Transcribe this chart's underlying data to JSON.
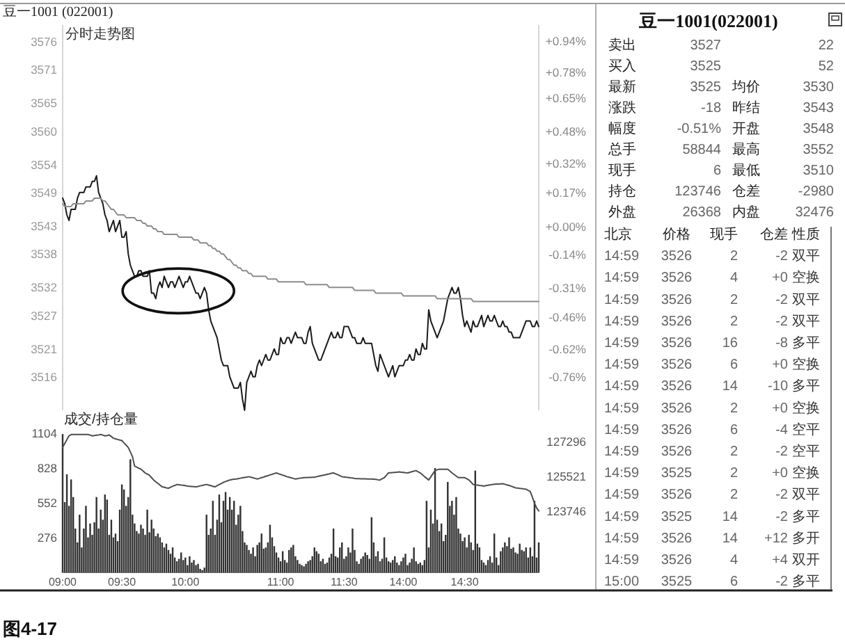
{
  "chart_data": [
    {
      "type": "line",
      "title": "豆一1001 (022001)",
      "subtitle": "分时走势图",
      "categories": [
        null,
        null,
        null,
        null,
        null,
        null,
        null,
        null,
        null,
        null,
        null,
        null,
        null,
        null,
        null,
        null,
        null,
        null,
        null,
        null,
        null,
        null,
        null,
        null,
        null,
        null,
        null,
        null,
        null,
        null,
        null,
        null,
        null,
        null,
        null,
        null,
        null,
        null,
        null,
        null,
        null,
        null,
        null,
        null,
        null,
        null,
        null,
        null,
        null,
        null,
        null,
        null,
        null,
        null,
        null,
        null,
        null,
        null,
        null,
        null,
        null,
        null,
        null,
        null,
        null,
        null,
        null,
        null,
        null,
        null,
        null,
        null,
        null,
        null,
        null,
        null,
        null,
        null,
        null,
        null,
        null,
        null,
        null,
        null,
        null,
        null,
        null,
        null,
        null,
        null,
        null,
        null,
        null,
        null,
        null,
        null,
        null,
        null,
        null,
        null,
        null,
        null,
        null,
        null,
        null,
        null,
        null,
        null,
        null,
        null,
        null,
        null,
        null,
        null,
        null,
        null,
        null,
        null,
        null,
        null,
        null,
        null,
        null,
        null,
        null,
        null,
        null,
        null,
        null,
        null,
        null,
        null,
        null,
        null,
        null,
        null,
        null,
        null,
        null,
        null,
        null,
        null,
        null,
        null,
        null,
        null,
        null,
        null,
        null,
        null,
        null,
        null,
        null,
        null,
        null,
        null,
        null,
        null,
        null,
        null,
        null,
        null,
        null,
        null,
        null,
        null,
        null,
        null,
        null,
        null,
        null,
        null,
        null,
        null,
        null,
        null,
        null,
        null,
        null,
        null,
        null,
        null,
        null,
        null,
        null,
        null,
        null,
        null,
        null,
        null,
        null,
        null,
        null,
        null,
        null,
        null,
        null,
        null,
        null,
        null,
        null,
        null,
        null,
        null,
        null,
        null,
        null,
        null,
        null,
        null,
        null,
        null,
        null,
        null,
        null,
        null,
        null,
        null,
        null,
        null,
        null,
        null,
        null,
        null,
        null,
        null
      ],
      "ylim": [
        3510,
        3579
      ],
      "yticks": [
        3576,
        3571,
        3565,
        3560,
        3554,
        3549,
        3543,
        3538,
        3532,
        3527,
        3521,
        3516
      ],
      "y2lim": [
        -0.93,
        1.02
      ],
      "y2ticks": [
        {
          "value": 0.94,
          "label": "+0.94%"
        },
        {
          "value": 0.78,
          "label": "+0.78%"
        },
        {
          "value": 0.65,
          "label": "+0.65%"
        },
        {
          "value": 0.48,
          "label": "+0.48%"
        },
        {
          "value": 0.32,
          "label": "+0.32%"
        },
        {
          "value": 0.17,
          "label": "+0.17%"
        },
        {
          "value": 0,
          "label": "+0.00%"
        },
        {
          "value": -0.14,
          "label": "-0.14%"
        },
        {
          "value": -0.31,
          "label": "-0.31%"
        },
        {
          "value": -0.46,
          "label": "-0.46%"
        },
        {
          "value": -0.62,
          "label": "-0.62%"
        },
        {
          "value": -0.76,
          "label": "-0.76%"
        }
      ],
      "tick_labels": "y",
      "series": [
        {
          "color": "#1a1a1a",
          "values": [
            3548,
            3547,
            3545,
            3544,
            3546,
            3546,
            3546,
            3548,
            3549,
            3549,
            3549,
            3550,
            3550,
            3550,
            3551,
            3551,
            3552,
            3549,
            3548,
            3547,
            3545,
            3544,
            3542,
            3543,
            3544,
            3542,
            3543,
            3544,
            3541,
            3541,
            3542,
            3538,
            3536,
            3535,
            3534,
            3534,
            3535,
            3535,
            3534,
            3534,
            3534,
            3535,
            3531,
            3531,
            3530,
            3532,
            3533,
            3532,
            3534,
            3533,
            3532,
            3533,
            3533,
            3532,
            3533,
            3534,
            3533,
            3532,
            3533,
            3533,
            3534,
            3533,
            3532,
            3531,
            3531,
            3530,
            3531,
            3532,
            3531,
            3528,
            3526,
            3525,
            3524,
            3523,
            3521,
            3519,
            3518,
            3518,
            3518,
            3516,
            3515,
            3514,
            3514,
            3514,
            3515,
            3512,
            3510,
            3515,
            3516,
            3517,
            3516,
            3516,
            3518,
            3519,
            3518,
            3519,
            3520,
            3519,
            3519,
            3520,
            3521,
            3520,
            3520,
            3523,
            3522,
            3522,
            3523,
            3523,
            3522,
            3523,
            3524,
            3523,
            3523,
            3523,
            3522,
            3522,
            3524,
            3525,
            3522,
            3521,
            3520,
            3519,
            3519,
            3520,
            3521,
            3522,
            3523,
            3524,
            3523,
            3523,
            3524,
            3523,
            3523,
            3525,
            3525,
            3525,
            3524,
            3523,
            3523,
            3522,
            3522,
            3522,
            3523,
            3522,
            3522,
            3522,
            3522,
            3520,
            3518,
            3517,
            3520,
            3519,
            3518,
            3517,
            3516,
            3517,
            3518,
            3516,
            3517,
            3518,
            3518,
            3518,
            3519,
            3519,
            3520,
            3519,
            3519,
            3521,
            3520,
            3520,
            3522,
            3521,
            3521,
            3528,
            3526,
            3525,
            3524,
            3523,
            3524,
            3525,
            3526,
            3528,
            3530,
            3531,
            3532,
            3531,
            3531,
            3532,
            3530,
            3527,
            3525,
            3526,
            3525,
            3524,
            3526,
            3525,
            3525,
            3526,
            3527,
            3525,
            3526,
            3527,
            3526,
            3526,
            3527,
            3526,
            3525,
            3525,
            3526,
            3525,
            3525,
            3524,
            3524,
            3523,
            3523,
            3523,
            3523,
            3524,
            3525,
            3526,
            3526,
            3526,
            3525,
            3525,
            3526,
            3525
          ]
        },
        {
          "color": "#8c8c8c",
          "values": [
            3547,
            3546.5,
            3546.5,
            3546.5,
            3546.5,
            3547,
            3547,
            3547,
            3547,
            3547,
            3547,
            3547.5,
            3547.5,
            3547.5,
            3547.5,
            3548,
            3548,
            3548,
            3548,
            3547.5,
            3547.5,
            3547,
            3546.5,
            3546,
            3546,
            3545.5,
            3545,
            3545,
            3545,
            3545,
            3544.5,
            3544.5,
            3544.5,
            3544.5,
            3544.5,
            3544,
            3544,
            3544,
            3543.5,
            3543.5,
            3543,
            3543,
            3543,
            3542.5,
            3542.5,
            3542,
            3542,
            3542,
            3541.5,
            3541.5,
            3541.5,
            3541.5,
            3541.5,
            3541.5,
            3541.5,
            3541,
            3541,
            3541,
            3541,
            3541,
            3541,
            3541,
            3540.5,
            3540.5,
            3540.5,
            3540,
            3540,
            3540,
            3540,
            3539.5,
            3539.5,
            3539,
            3539,
            3538.5,
            3538.5,
            3538,
            3538,
            3537.5,
            3537,
            3537,
            3536.5,
            3536,
            3536,
            3535.5,
            3535.5,
            3535,
            3535,
            3535,
            3534.5,
            3534.5,
            3534,
            3534,
            3534,
            3534,
            3534,
            3534,
            3534,
            3533.5,
            3533.5,
            3533.5,
            3533.5,
            3533.5,
            3533,
            3533,
            3533,
            3533,
            3533,
            3533,
            3533,
            3533,
            3533,
            3533,
            3533,
            3533,
            3533,
            3532.5,
            3532.5,
            3532.5,
            3532.5,
            3532.5,
            3532.5,
            3532.5,
            3532.5,
            3532.5,
            3532.5,
            3532.5,
            3532,
            3532,
            3532,
            3532,
            3532,
            3532,
            3532,
            3532,
            3532,
            3532,
            3532,
            3532,
            3531.5,
            3531.5,
            3531.5,
            3531.5,
            3531.5,
            3531.5,
            3531.5,
            3531.5,
            3531.5,
            3531.5,
            3531,
            3531,
            3531,
            3531,
            3531,
            3531,
            3531,
            3531,
            3531,
            3531,
            3531,
            3531,
            3531,
            3530.5,
            3530.5,
            3530.5,
            3530.5,
            3530.5,
            3530.5,
            3530.5,
            3530.5,
            3530.5,
            3530.5,
            3530.5,
            3530.5,
            3530.5,
            3530.5,
            3530.5,
            3530.5,
            3530,
            3530,
            3530,
            3530,
            3530,
            3530,
            3530,
            3530,
            3530,
            3530,
            3530,
            3530,
            3530,
            3530,
            3530,
            3530,
            3530,
            3529.5,
            3529.5,
            3529.5,
            3529.5,
            3529.5,
            3529.5,
            3529.5,
            3529.5,
            3529.5,
            3529.5,
            3529.5,
            3529.5,
            3529.5,
            3529.5,
            3529.5,
            3529.5,
            3529.5,
            3529.5,
            3529.5,
            3529.5,
            3529.5,
            3529.5,
            3529.5,
            3529.5,
            3529.5,
            3529.5,
            3529.5,
            3529.5,
            3529.5,
            3529.5,
            3529.5,
            3529.5
          ]
        }
      ],
      "annotations": [
        "图4-17"
      ]
    },
    {
      "type": "bar",
      "title": "成交/持仓量",
      "categories": [
        "09:00",
        null,
        null,
        null,
        null,
        null,
        null,
        null,
        null,
        null,
        null,
        null,
        null,
        null,
        null,
        null,
        null,
        null,
        null,
        null,
        null,
        null,
        null,
        null,
        null,
        null,
        null,
        null,
        "09:30",
        null,
        null,
        null,
        null,
        null,
        null,
        null,
        null,
        null,
        null,
        null,
        null,
        null,
        null,
        null,
        null,
        null,
        null,
        null,
        null,
        null,
        null,
        null,
        null,
        null,
        null,
        null,
        null,
        null,
        "10:00",
        null,
        null,
        null,
        null,
        null,
        null,
        null,
        null,
        null,
        null,
        null,
        null,
        null,
        null,
        null,
        null,
        null,
        null,
        null,
        null,
        null,
        null,
        null,
        null,
        null,
        null,
        null,
        null,
        null,
        null,
        null,
        null,
        null,
        null,
        null,
        null,
        null,
        null,
        null,
        null,
        null,
        null,
        null,
        null,
        "11:00",
        null,
        null,
        null,
        null,
        null,
        null,
        null,
        null,
        null,
        null,
        null,
        null,
        null,
        null,
        null,
        null,
        null,
        null,
        null,
        null,
        null,
        null,
        null,
        null,
        null,
        null,
        null,
        null,
        null,
        "11:30",
        null,
        null,
        null,
        null,
        null,
        null,
        null,
        null,
        null,
        null,
        null,
        null,
        null,
        null,
        null,
        null,
        null,
        null,
        null,
        null,
        null,
        null,
        null,
        null,
        null,
        null,
        null,
        "14:00",
        null,
        null,
        null,
        null,
        null,
        null,
        null,
        null,
        null,
        null,
        null,
        null,
        null,
        null,
        null,
        null,
        null,
        null,
        null,
        null,
        null,
        null,
        null,
        null,
        null,
        null,
        null,
        null,
        "14:30",
        null,
        null,
        null,
        null,
        null,
        null,
        null,
        null,
        null,
        null,
        null,
        null,
        null,
        null,
        null,
        null,
        null,
        null,
        null,
        null,
        null,
        null,
        null,
        null,
        null,
        null,
        null,
        null,
        null,
        null,
        null,
        null,
        null,
        null,
        null
      ],
      "ylim": [
        0,
        1104
      ],
      "yticks": [
        1104,
        828,
        552,
        276
      ],
      "y2lim": [
        120600,
        127700
      ],
      "y2ticks": [
        127296,
        125521,
        123746
      ],
      "series": [
        {
          "color": "#333333",
          "values": [
            1100,
            560,
            780,
            530,
            740,
            600,
            350,
            240,
            460,
            200,
            350,
            530,
            280,
            390,
            300,
            400,
            600,
            350,
            500,
            420,
            620,
            580,
            300,
            420,
            280,
            310,
            250,
            500,
            700,
            660,
            530,
            600,
            900,
            460,
            390,
            330,
            310,
            380,
            350,
            300,
            500,
            320,
            420,
            350,
            290,
            310,
            280,
            240,
            200,
            230,
            180,
            150,
            200,
            120,
            90,
            110,
            160,
            100,
            120,
            60,
            130,
            80,
            100,
            60,
            70,
            30,
            20,
            40,
            460,
            300,
            350,
            570,
            300,
            420,
            620,
            400,
            570,
            640,
            500,
            600,
            500,
            570,
            380,
            460,
            530,
            330,
            240,
            220,
            180,
            150,
            200,
            130,
            220,
            240,
            310,
            190,
            200,
            240,
            380,
            280,
            210,
            160,
            120,
            90,
            170,
            100,
            80,
            180,
            200,
            220,
            130,
            100,
            70,
            60,
            50,
            70,
            90,
            100,
            130,
            200,
            170,
            150,
            90,
            110,
            70,
            80,
            120,
            150,
            350,
            130,
            120,
            200,
            240,
            110,
            130,
            200,
            160,
            350,
            180,
            90,
            70,
            110,
            130,
            160,
            140,
            110,
            440,
            240,
            130,
            170,
            90,
            110,
            280,
            120,
            90,
            80,
            100,
            130,
            80,
            60,
            90,
            120,
            150,
            60,
            80,
            110,
            200,
            90,
            70,
            80,
            60,
            100,
            570,
            200,
            500,
            390,
            830,
            420,
            330,
            390,
            250,
            300,
            720,
            530,
            570,
            460,
            600,
            350,
            310,
            250,
            280,
            200,
            300,
            240,
            180,
            810,
            230,
            200,
            100,
            80,
            60,
            100,
            130,
            80,
            310,
            120,
            60,
            170,
            200,
            240,
            210,
            280,
            190,
            200,
            160,
            150,
            230,
            180,
            170,
            200,
            120,
            200,
            130,
            570,
            120,
            240
          ]
        },
        {
          "type": "line",
          "axis": "y2",
          "color": "#4d4d4d",
          "values": [
            126990,
            127190,
            127390,
            127580,
            127650,
            127650,
            127650,
            127650,
            127650,
            127650,
            127650,
            127650,
            127650,
            127620,
            127580,
            127600,
            127620,
            127630,
            127650,
            127620,
            127580,
            127600,
            127630,
            127550,
            127460,
            127430,
            127400,
            127370,
            127340,
            127220,
            127110,
            126990,
            126760,
            126520,
            126040,
            125990,
            125930,
            125880,
            125790,
            125690,
            125630,
            125570,
            125450,
            125330,
            125240,
            125160,
            125070,
            124980,
            124960,
            124930,
            124910,
            124960,
            125010,
            125050,
            125100,
            125090,
            125070,
            125060,
            125040,
            125020,
            125010,
            125000,
            124990,
            124980,
            125000,
            125030,
            125050,
            125080,
            125100,
            125070,
            125040,
            125010,
            124980,
            125040,
            125100,
            125150,
            125210,
            125250,
            125290,
            125330,
            125350,
            125370,
            125380,
            125400,
            125420,
            125440,
            125460,
            125480,
            125500,
            125470,
            125440,
            125410,
            125380,
            125410,
            125450,
            125480,
            125520,
            125550,
            125590,
            125620,
            125660,
            125690,
            125650,
            125610,
            125580,
            125540,
            125500,
            125470,
            125440,
            125410,
            125380,
            125400,
            125420,
            125430,
            125450,
            125450,
            125460,
            125460,
            125470,
            125470,
            125500,
            125520,
            125550,
            125570,
            125590,
            125620,
            125640,
            125670,
            125690,
            125640,
            125600,
            125550,
            125500,
            125490,
            125470,
            125460,
            125440,
            125430,
            125410,
            125400,
            125400,
            125390,
            125390,
            125390,
            125380,
            125380,
            125380,
            125370,
            125360,
            125340,
            125330,
            125390,
            125450,
            125570,
            125690,
            125700,
            125710,
            125720,
            125730,
            125740,
            125730,
            125720,
            125700,
            125690,
            125720,
            125750,
            125780,
            125810,
            125750,
            125690,
            125600,
            125500,
            125420,
            125330,
            125490,
            125650,
            125810,
            125850,
            125880,
            125880,
            125880,
            125880,
            125880,
            125790,
            125690,
            125610,
            125530,
            125450,
            125450,
            125450,
            125450,
            125390,
            125330,
            125220,
            125100,
            125080,
            125070,
            125050,
            125040,
            125020,
            125040,
            125060,
            125080,
            125100,
            125110,
            125120,
            125120,
            125130,
            125140,
            125110,
            125080,
            125050,
            125010,
            124970,
            124930,
            124920,
            124900,
            124890,
            124870,
            124860,
            124800,
            124740,
            124450,
            124150,
            123900,
            123750
          ]
        }
      ]
    },
    {
      "type": "other",
      "title": "豆一1001(022001)",
      "annotations": [
        "卖出",
        "3527",
        "22",
        "买入",
        "3525",
        "52",
        "最新",
        "3525",
        "均价",
        "3530",
        "涨跌",
        "-18",
        "昨结",
        "3543",
        "幅度",
        "-0.51%",
        "开盘",
        "3548",
        "总手",
        "58844",
        "最高",
        "3552",
        "现手",
        "6",
        "最低",
        "3510",
        "持仓",
        "123746",
        "仓差",
        "-2980",
        "外盘",
        "26368",
        "内盘",
        "32476",
        "北京",
        "价格",
        "现手",
        "仓差",
        "性质",
        "14:59",
        "3526",
        "2",
        "-2",
        "双平",
        "14:59",
        "3526",
        "4",
        "+0",
        "空换",
        "14:59",
        "3526",
        "2",
        "-2",
        "双平",
        "14:59",
        "3526",
        "2",
        "-2",
        "双平",
        "14:59",
        "3526",
        "16",
        "-8",
        "多平",
        "14:59",
        "3526",
        "6",
        "+0",
        "空换",
        "14:59",
        "3526",
        "14",
        "-10",
        "多平",
        "14:59",
        "3526",
        "2",
        "+0",
        "空换",
        "14:59",
        "3526",
        "6",
        "-4",
        "空平",
        "14:59",
        "3526",
        "2",
        "-2",
        "空平",
        "14:59",
        "3525",
        "2",
        "+0",
        "空换",
        "14:59",
        "3526",
        "2",
        "-2",
        "双平",
        "14:59",
        "3525",
        "14",
        "-2",
        "多平",
        "14:59",
        "3526",
        "14",
        "+12",
        "多开",
        "14:59",
        "3526",
        "4",
        "+4",
        "双开",
        "15:00",
        "3525",
        "6",
        "-2",
        "多平"
      ]
    }
  ]
}
